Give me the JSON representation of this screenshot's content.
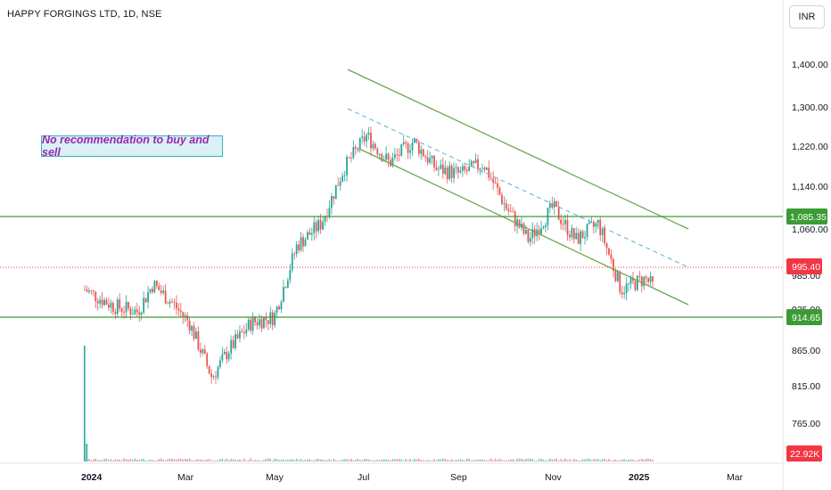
{
  "header": {
    "title": "HAPPY FORGINGS LTD, 1D, NSE"
  },
  "currency_button": {
    "label": "INR"
  },
  "annotation": {
    "text": "No recommendation to buy and sell"
  },
  "colors": {
    "up": "#26a69a",
    "down": "#ef5350",
    "green_line": "#3d9b35",
    "trend": "#6aa84f",
    "dash": "#5aaed8",
    "price_red": "#f23645"
  },
  "chart_data": {
    "type": "candlestick",
    "x_axis_labels": [
      "2024",
      "Mar",
      "May",
      "Jul",
      "Sep",
      "Nov",
      "2025",
      "Mar"
    ],
    "y_axis_labels": [
      1400,
      1300,
      1220,
      1140,
      1060,
      985,
      935,
      865,
      815,
      765
    ],
    "y_axis_label_text": [
      "1,400.00",
      "1,300.00",
      "1,220.00",
      "1,140.00",
      "1,060.00",
      "985.00",
      "935.00",
      "865.00",
      "815.00",
      "765.00"
    ],
    "price_badges": [
      {
        "label": "1,085.35",
        "value": 1085.35,
        "kind": "support"
      },
      {
        "label": "995.40",
        "value": 995.4,
        "kind": "last"
      },
      {
        "label": "914.65",
        "value": 914.65,
        "kind": "support"
      }
    ],
    "volume_badge": "22.92K",
    "horizontal_levels": [
      1085.35,
      914.65
    ],
    "last_price": 995.4,
    "approx_close_path": [
      {
        "date": "2024-01-01",
        "close": 990
      },
      {
        "date": "2024-01-20",
        "close": 960
      },
      {
        "date": "2024-02-05",
        "close": 950
      },
      {
        "date": "2024-02-15",
        "close": 1000
      },
      {
        "date": "2024-02-28",
        "close": 965
      },
      {
        "date": "2024-03-10",
        "close": 930
      },
      {
        "date": "2024-03-25",
        "close": 830
      },
      {
        "date": "2024-04-05",
        "close": 880
      },
      {
        "date": "2024-04-20",
        "close": 930
      },
      {
        "date": "2024-05-05",
        "close": 940
      },
      {
        "date": "2024-05-20",
        "close": 1070
      },
      {
        "date": "2024-06-05",
        "close": 1110
      },
      {
        "date": "2024-06-20",
        "close": 1210
      },
      {
        "date": "2024-07-05",
        "close": 1270
      },
      {
        "date": "2024-07-20",
        "close": 1220
      },
      {
        "date": "2024-08-05",
        "close": 1260
      },
      {
        "date": "2024-08-20",
        "close": 1210
      },
      {
        "date": "2024-09-05",
        "close": 1200
      },
      {
        "date": "2024-09-20",
        "close": 1220
      },
      {
        "date": "2024-10-05",
        "close": 1140
      },
      {
        "date": "2024-10-20",
        "close": 1080
      },
      {
        "date": "2024-11-05",
        "close": 1140
      },
      {
        "date": "2024-11-20",
        "close": 1080
      },
      {
        "date": "2024-12-05",
        "close": 1110
      },
      {
        "date": "2024-12-20",
        "close": 990
      },
      {
        "date": "2025-01-05",
        "close": 1010
      },
      {
        "date": "2025-01-10",
        "close": 995.4
      }
    ],
    "volume_spike": {
      "date": "2024-01-01"
    }
  }
}
